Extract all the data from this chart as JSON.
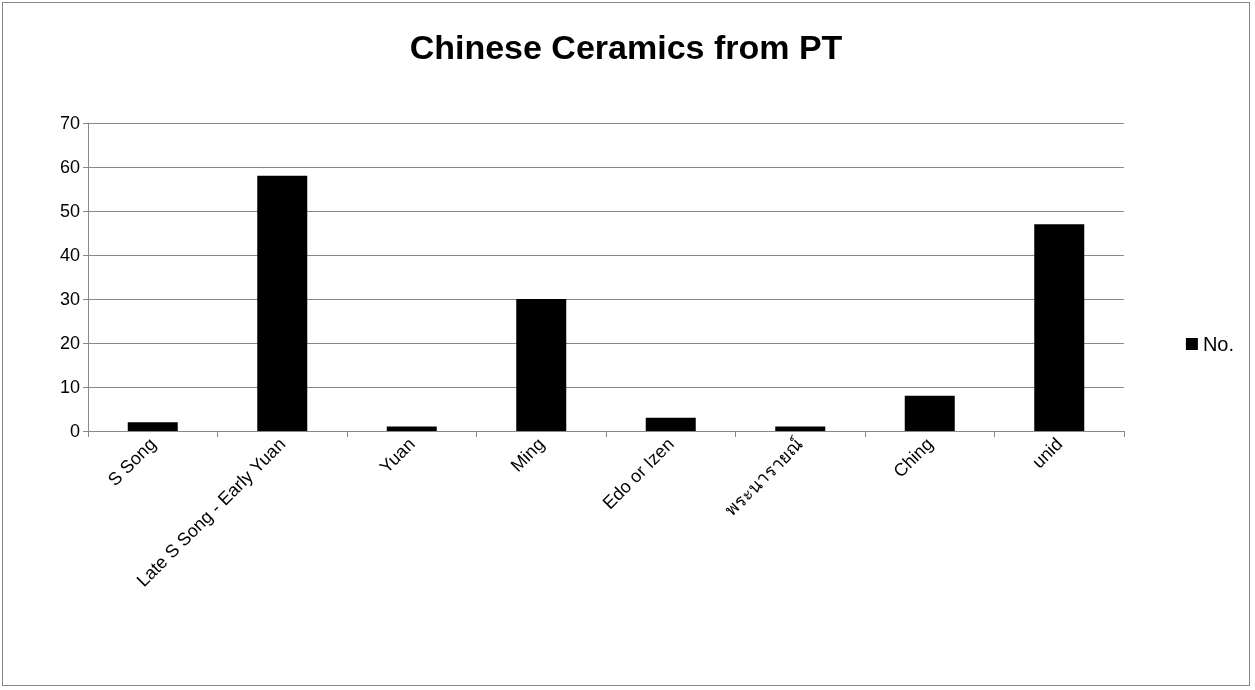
{
  "chart_data": {
    "type": "bar",
    "title": "Chinese Ceramics from PT",
    "categories": [
      "S Song",
      "Late S Song - Early Yuan",
      "Yuan",
      "Ming",
      "Edo or Izen",
      "พระนารายณ์",
      "Ching",
      "unid"
    ],
    "series": [
      {
        "name": "No.",
        "color": "#000000",
        "values": [
          2,
          58,
          1,
          30,
          3,
          1,
          8,
          47
        ]
      }
    ],
    "ylim": [
      0,
      70
    ],
    "yticks": [
      0,
      10,
      20,
      30,
      40,
      50,
      60,
      70
    ],
    "grid": "y",
    "legend": "right"
  }
}
